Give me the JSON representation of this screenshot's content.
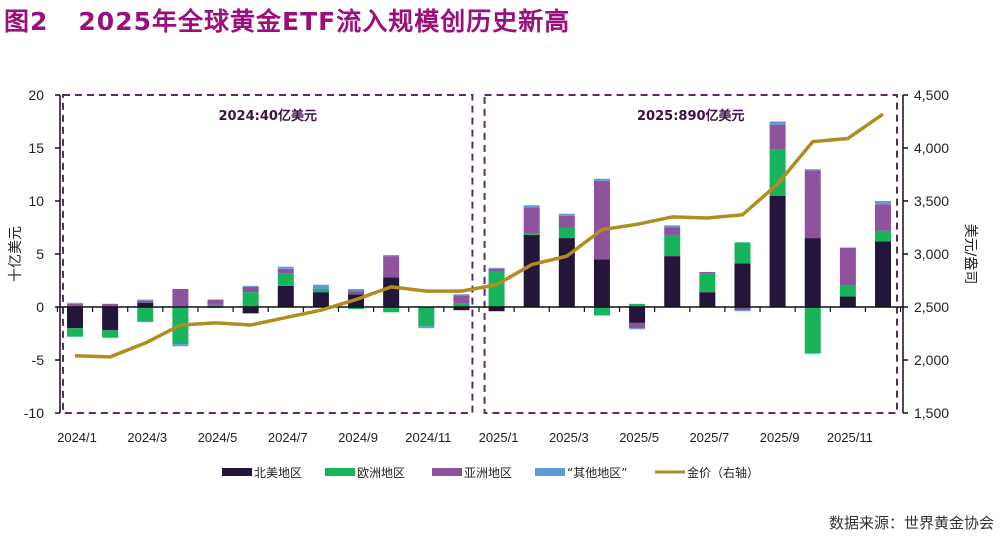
{
  "title": {
    "fig_no": "图2",
    "text": "2025年全球黄金ETF流入规模创历史新高"
  },
  "source": "数据来源：世界黄金协会",
  "colors": {
    "north_america": "#23163a",
    "europe": "#17b45c",
    "asia": "#8f529c",
    "other": "#5f9bd4",
    "gold_price": "#b08d1f",
    "frame": "#5b2a6e",
    "title": "#9b0f7c"
  },
  "chart_data": {
    "type": "bar",
    "stacked": true,
    "title": "2025年全球黄金ETF流入规模创历史新高",
    "categories": [
      "2024/1",
      "2024/2",
      "2024/3",
      "2024/4",
      "2024/5",
      "2024/6",
      "2024/7",
      "2024/8",
      "2024/9",
      "2024/10",
      "2024/11",
      "2024/12",
      "2025/1",
      "2025/2",
      "2025/3",
      "2025/4",
      "2025/5",
      "2025/6",
      "2025/7",
      "2025/8",
      "2025/9",
      "2025/10",
      "2025/11",
      "2025/12"
    ],
    "x_tick_labels": [
      "2024/1",
      "2024/3",
      "2024/5",
      "2024/7",
      "2024/9",
      "2024/11",
      "2025/1",
      "2025/3",
      "2025/5",
      "2025/7",
      "2025/9",
      "2025/11"
    ],
    "ylabel": "十亿美元",
    "y2label": "美元/盎司",
    "ylim": [
      -10,
      20
    ],
    "yticks": [
      -10,
      -5,
      0,
      5,
      10,
      15,
      20
    ],
    "y2lim": [
      1500,
      4500
    ],
    "y2ticks": [
      "1,500",
      "2,000",
      "2,500",
      "3,000",
      "3,500",
      "4,000",
      "4,500"
    ],
    "y2tick_values": [
      1500,
      2000,
      2500,
      3000,
      3500,
      4000,
      4500
    ],
    "series": [
      {
        "name": "北美地区",
        "key": "north_america",
        "values": [
          -2.0,
          -2.2,
          0.4,
          0.0,
          0.0,
          -0.6,
          2.0,
          1.4,
          1.2,
          2.8,
          0.0,
          -0.3,
          -0.4,
          6.8,
          6.5,
          4.5,
          -1.5,
          4.8,
          1.4,
          4.1,
          10.5,
          6.5,
          1.0,
          6.2
        ]
      },
      {
        "name": "欧洲地区",
        "key": "europe",
        "values": [
          -0.8,
          -0.7,
          -1.4,
          -3.5,
          0.2,
          1.4,
          1.2,
          0.3,
          -0.2,
          -0.5,
          -1.8,
          0.3,
          3.4,
          0.1,
          1.0,
          -0.8,
          0.3,
          2.0,
          1.8,
          2.0,
          4.4,
          -4.4,
          1.0,
          1.0
        ]
      },
      {
        "name": "亚洲地区",
        "key": "asia",
        "values": [
          0.3,
          0.3,
          0.2,
          1.7,
          0.5,
          0.5,
          0.4,
          0.0,
          0.3,
          2.0,
          0.0,
          0.8,
          0.2,
          2.5,
          1.1,
          7.4,
          -0.5,
          0.7,
          0.1,
          -0.3,
          2.3,
          6.4,
          3.6,
          2.5
        ]
      },
      {
        "name": "“其他地区”",
        "key": "other",
        "values": [
          0.1,
          0.0,
          0.1,
          -0.2,
          -0.1,
          0.1,
          0.2,
          0.4,
          0.2,
          0.1,
          -0.2,
          0.1,
          0.1,
          0.2,
          0.2,
          0.2,
          -0.1,
          0.2,
          0.0,
          -0.1,
          0.3,
          0.1,
          0.0,
          0.3
        ]
      }
    ],
    "line_series": {
      "name": "金价（右轴）",
      "key": "gold_price",
      "axis": "right",
      "values": [
        2040,
        2030,
        2160,
        2330,
        2350,
        2330,
        2400,
        2470,
        2570,
        2690,
        2650,
        2650,
        2710,
        2900,
        2980,
        3230,
        3280,
        3350,
        3340,
        3370,
        3660,
        4060,
        4090,
        4320
      ]
    },
    "annotations": [
      {
        "text": "2024:40亿美元",
        "range": [
          "2024/1",
          "2024/12"
        ]
      },
      {
        "text": "2025:890亿美元",
        "range": [
          "2025/1",
          "2025/12"
        ]
      }
    ],
    "legend": {
      "placement": "bottom",
      "entries": [
        "北美地区",
        "欧洲地区",
        "亚洲地区",
        "“其他地区”",
        "金价（右轴）"
      ]
    },
    "grid": false
  }
}
